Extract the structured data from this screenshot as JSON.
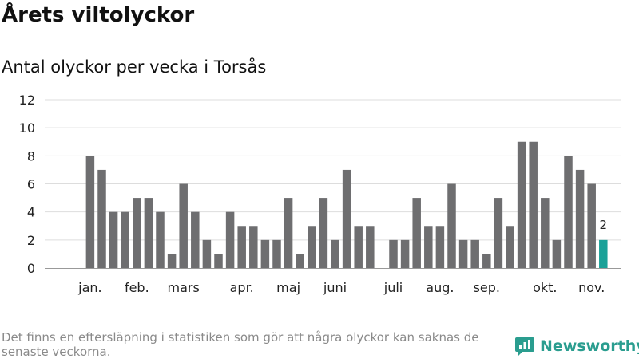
{
  "title": "Årets viltolyckor",
  "subtitle": "Antal olyckor per vecka i Torsås",
  "footnote": "Det finns en eftersläpning i statistiken som gör att några olyckor kan saknas de senaste veckorna.",
  "brand": {
    "name": "Newsworthy",
    "icon": "newsworthy-logo-icon"
  },
  "colors": {
    "bar": "#6e6e70",
    "highlight": "#1aa198",
    "grid": "#dddddd",
    "baseline": "#999999"
  },
  "chart_data": {
    "type": "bar",
    "title": "Årets viltolyckor",
    "subtitle": "Antal olyckor per vecka i Torsås",
    "xlabel": "",
    "ylabel": "",
    "ylim": [
      0,
      12
    ],
    "yticks": [
      0,
      2,
      4,
      6,
      8,
      10,
      12
    ],
    "grid": true,
    "x_tick_labels": [
      {
        "label": "jan.",
        "week": 2
      },
      {
        "label": "feb.",
        "week": 6
      },
      {
        "label": "mars",
        "week": 10
      },
      {
        "label": "apr.",
        "week": 15
      },
      {
        "label": "maj",
        "week": 19
      },
      {
        "label": "juni",
        "week": 23
      },
      {
        "label": "juli",
        "week": 28
      },
      {
        "label": "aug.",
        "week": 32
      },
      {
        "label": "sep.",
        "week": 36
      },
      {
        "label": "okt.",
        "week": 41
      },
      {
        "label": "nov.",
        "week": 45
      }
    ],
    "weeks": [
      1,
      2,
      3,
      4,
      5,
      6,
      7,
      8,
      9,
      10,
      11,
      12,
      13,
      14,
      15,
      16,
      17,
      18,
      19,
      20,
      21,
      22,
      23,
      24,
      25,
      26,
      27,
      28,
      29,
      30,
      31,
      32,
      33,
      34,
      35,
      36,
      37,
      38,
      39,
      40,
      41,
      42,
      43,
      44,
      45,
      46
    ],
    "values": [
      0,
      8,
      7,
      4,
      4,
      5,
      5,
      4,
      1,
      6,
      4,
      2,
      1,
      4,
      3,
      3,
      2,
      2,
      5,
      1,
      3,
      5,
      2,
      7,
      3,
      3,
      0,
      2,
      2,
      5,
      3,
      3,
      6,
      2,
      2,
      1,
      5,
      3,
      9,
      9,
      5,
      2,
      8,
      7,
      6,
      2
    ],
    "highlight": {
      "week": 46,
      "value": 2,
      "label": "2"
    }
  }
}
